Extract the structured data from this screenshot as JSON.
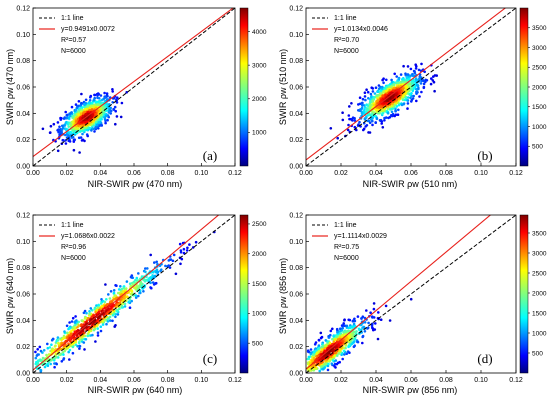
{
  "chart_data": [
    {
      "type": "scatter",
      "panel_label": "(a)",
      "xlabel": "NIR-SWIR ρw (470 nm)",
      "ylabel": "SWIR ρw (470 nm)",
      "xlim": [
        0,
        0.12
      ],
      "ylim": [
        0,
        0.12
      ],
      "ticks": [
        "0.00",
        "0.02",
        "0.04",
        "0.06",
        "0.08",
        "0.10",
        "0.12"
      ],
      "legend": [
        {
          "label": "1:1 line",
          "style": "dashed",
          "color": "#000000"
        },
        {
          "label": "y=0.9491x0.0072",
          "style": "solid",
          "color": "#e8211c"
        }
      ],
      "r2_text": "R²=0.57",
      "n_text": "N=6000",
      "fit": {
        "slope": 0.9491,
        "intercept": 0.0072
      },
      "cloud": {
        "cx": 0.032,
        "cy": 0.037,
        "sx": 0.0075,
        "sy": 0.0075,
        "rho": 0.6,
        "count": 6000
      },
      "colorbar": {
        "min": 0,
        "max": 4700,
        "ticks": [
          1000,
          2000,
          3000,
          4000
        ]
      }
    },
    {
      "type": "scatter",
      "panel_label": "(b)",
      "xlabel": "NIR-SWIR ρw (510 nm)",
      "ylabel": "SWIR ρw (510 nm)",
      "xlim": [
        0,
        0.12
      ],
      "ylim": [
        0,
        0.12
      ],
      "ticks": [
        "0.00",
        "0.02",
        "0.04",
        "0.06",
        "0.08",
        "0.10",
        "0.12"
      ],
      "legend": [
        {
          "label": "1:1 line",
          "style": "dashed",
          "color": "#000000"
        },
        {
          "label": "y=1.0134x0.0046",
          "style": "solid",
          "color": "#e8211c"
        }
      ],
      "r2_text": "R²=0.70",
      "n_text": "N=6000",
      "fit": {
        "slope": 1.0134,
        "intercept": 0.0046
      },
      "cloud": {
        "cx": 0.048,
        "cy": 0.052,
        "sx": 0.009,
        "sy": 0.009,
        "rho": 0.72,
        "count": 6000
      },
      "colorbar": {
        "min": 0,
        "max": 4000,
        "ticks": [
          500,
          1000,
          1500,
          2000,
          2500,
          3000,
          3500
        ]
      }
    },
    {
      "type": "scatter",
      "panel_label": "(c)",
      "xlabel": "NIR-SWIR ρw (640 nm)",
      "ylabel": "SWIR ρw (640 nm)",
      "xlim": [
        0,
        0.12
      ],
      "ylim": [
        0,
        0.12
      ],
      "ticks": [
        "0.00",
        "0.02",
        "0.04",
        "0.06",
        "0.08",
        "0.10",
        "0.12"
      ],
      "legend": [
        {
          "label": "1:1 line",
          "style": "dashed",
          "color": "#000000"
        },
        {
          "label": "y=1.0686x0.0022",
          "style": "solid",
          "color": "#e8211c"
        }
      ],
      "r2_text": "R²=0.96",
      "n_text": "N=6000",
      "fit": {
        "slope": 1.0686,
        "intercept": 0.0022
      },
      "cloud": {
        "cx": 0.035,
        "cy": 0.039,
        "sx": 0.022,
        "sy": 0.023,
        "rho": 0.97,
        "count": 6000
      },
      "colorbar": {
        "min": 0,
        "max": 2650,
        "ticks": [
          500,
          1000,
          1500,
          2000,
          2500
        ]
      }
    },
    {
      "type": "scatter",
      "panel_label": "(d)",
      "xlabel": "NIR-SWIR ρw (856 nm)",
      "ylabel": "SWIR ρw (856 nm)",
      "xlim": [
        0,
        0.12
      ],
      "ylim": [
        0,
        0.12
      ],
      "ticks": [
        "0.00",
        "0.02",
        "0.04",
        "0.06",
        "0.08",
        "0.10",
        "0.12"
      ],
      "legend": [
        {
          "label": "1:1 line",
          "style": "dashed",
          "color": "#000000"
        },
        {
          "label": "y=1.1114x0.0029",
          "style": "solid",
          "color": "#e8211c"
        }
      ],
      "r2_text": "R²=0.75",
      "n_text": "N=6000",
      "fit": {
        "slope": 1.1114,
        "intercept": 0.0029
      },
      "cloud": {
        "cx": 0.013,
        "cy": 0.016,
        "sx": 0.011,
        "sy": 0.012,
        "rho": 0.88,
        "count": 6000,
        "floor": 0.0
      },
      "colorbar": {
        "min": 0,
        "max": 3950,
        "ticks": [
          500,
          1000,
          1500,
          2000,
          2500,
          3000,
          3500
        ]
      }
    }
  ]
}
